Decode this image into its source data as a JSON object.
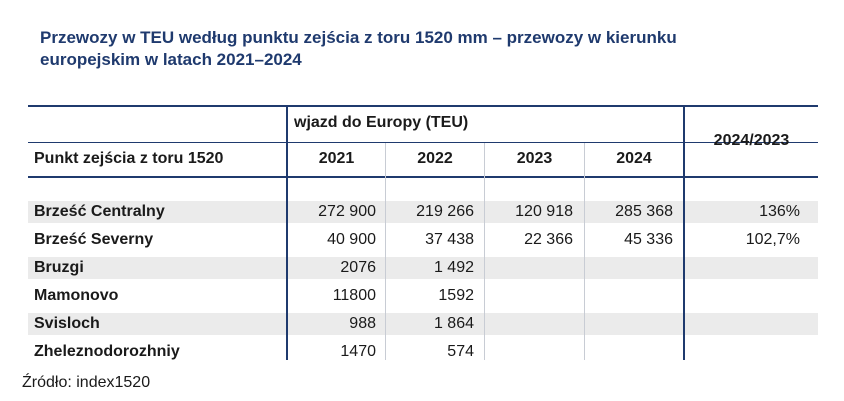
{
  "title": "Przewozy w TEU według punktu zejścia z toru 1520 mm – przewozy w kierunku europejskim w latach 2021–2024",
  "table": {
    "group_header": "wjazd do Europy (TEU)",
    "col_header_point": "Punkt zejścia z toru 1520",
    "years": [
      "2021",
      "2022",
      "2023",
      "2024"
    ],
    "ratio_header": "2024/2023",
    "rows": [
      {
        "name": "Brześć Centralny",
        "v2021": "272 900",
        "v2022": "219 266",
        "v2023": "120 918",
        "v2024": "285 368",
        "ratio": "136%"
      },
      {
        "name": "Brześć Severny",
        "v2021": "40 900",
        "v2022": "37 438",
        "v2023": "22 366",
        "v2024": "45 336",
        "ratio": "102,7%"
      },
      {
        "name": "Bruzgi",
        "v2021": "2076",
        "v2022": "1 492",
        "v2023": "",
        "v2024": "",
        "ratio": ""
      },
      {
        "name": "Mamonovo",
        "v2021": "11800",
        "v2022": "1592",
        "v2023": "",
        "v2024": "",
        "ratio": ""
      },
      {
        "name": "Svisloch",
        "v2021": "988",
        "v2022": "1 864",
        "v2023": "",
        "v2024": "",
        "ratio": ""
      },
      {
        "name": "Zheleznodorozhniy",
        "v2021": "1470",
        "v2022": "574",
        "v2023": "",
        "v2024": "",
        "ratio": ""
      }
    ]
  },
  "source": "Źródło: index1520"
}
